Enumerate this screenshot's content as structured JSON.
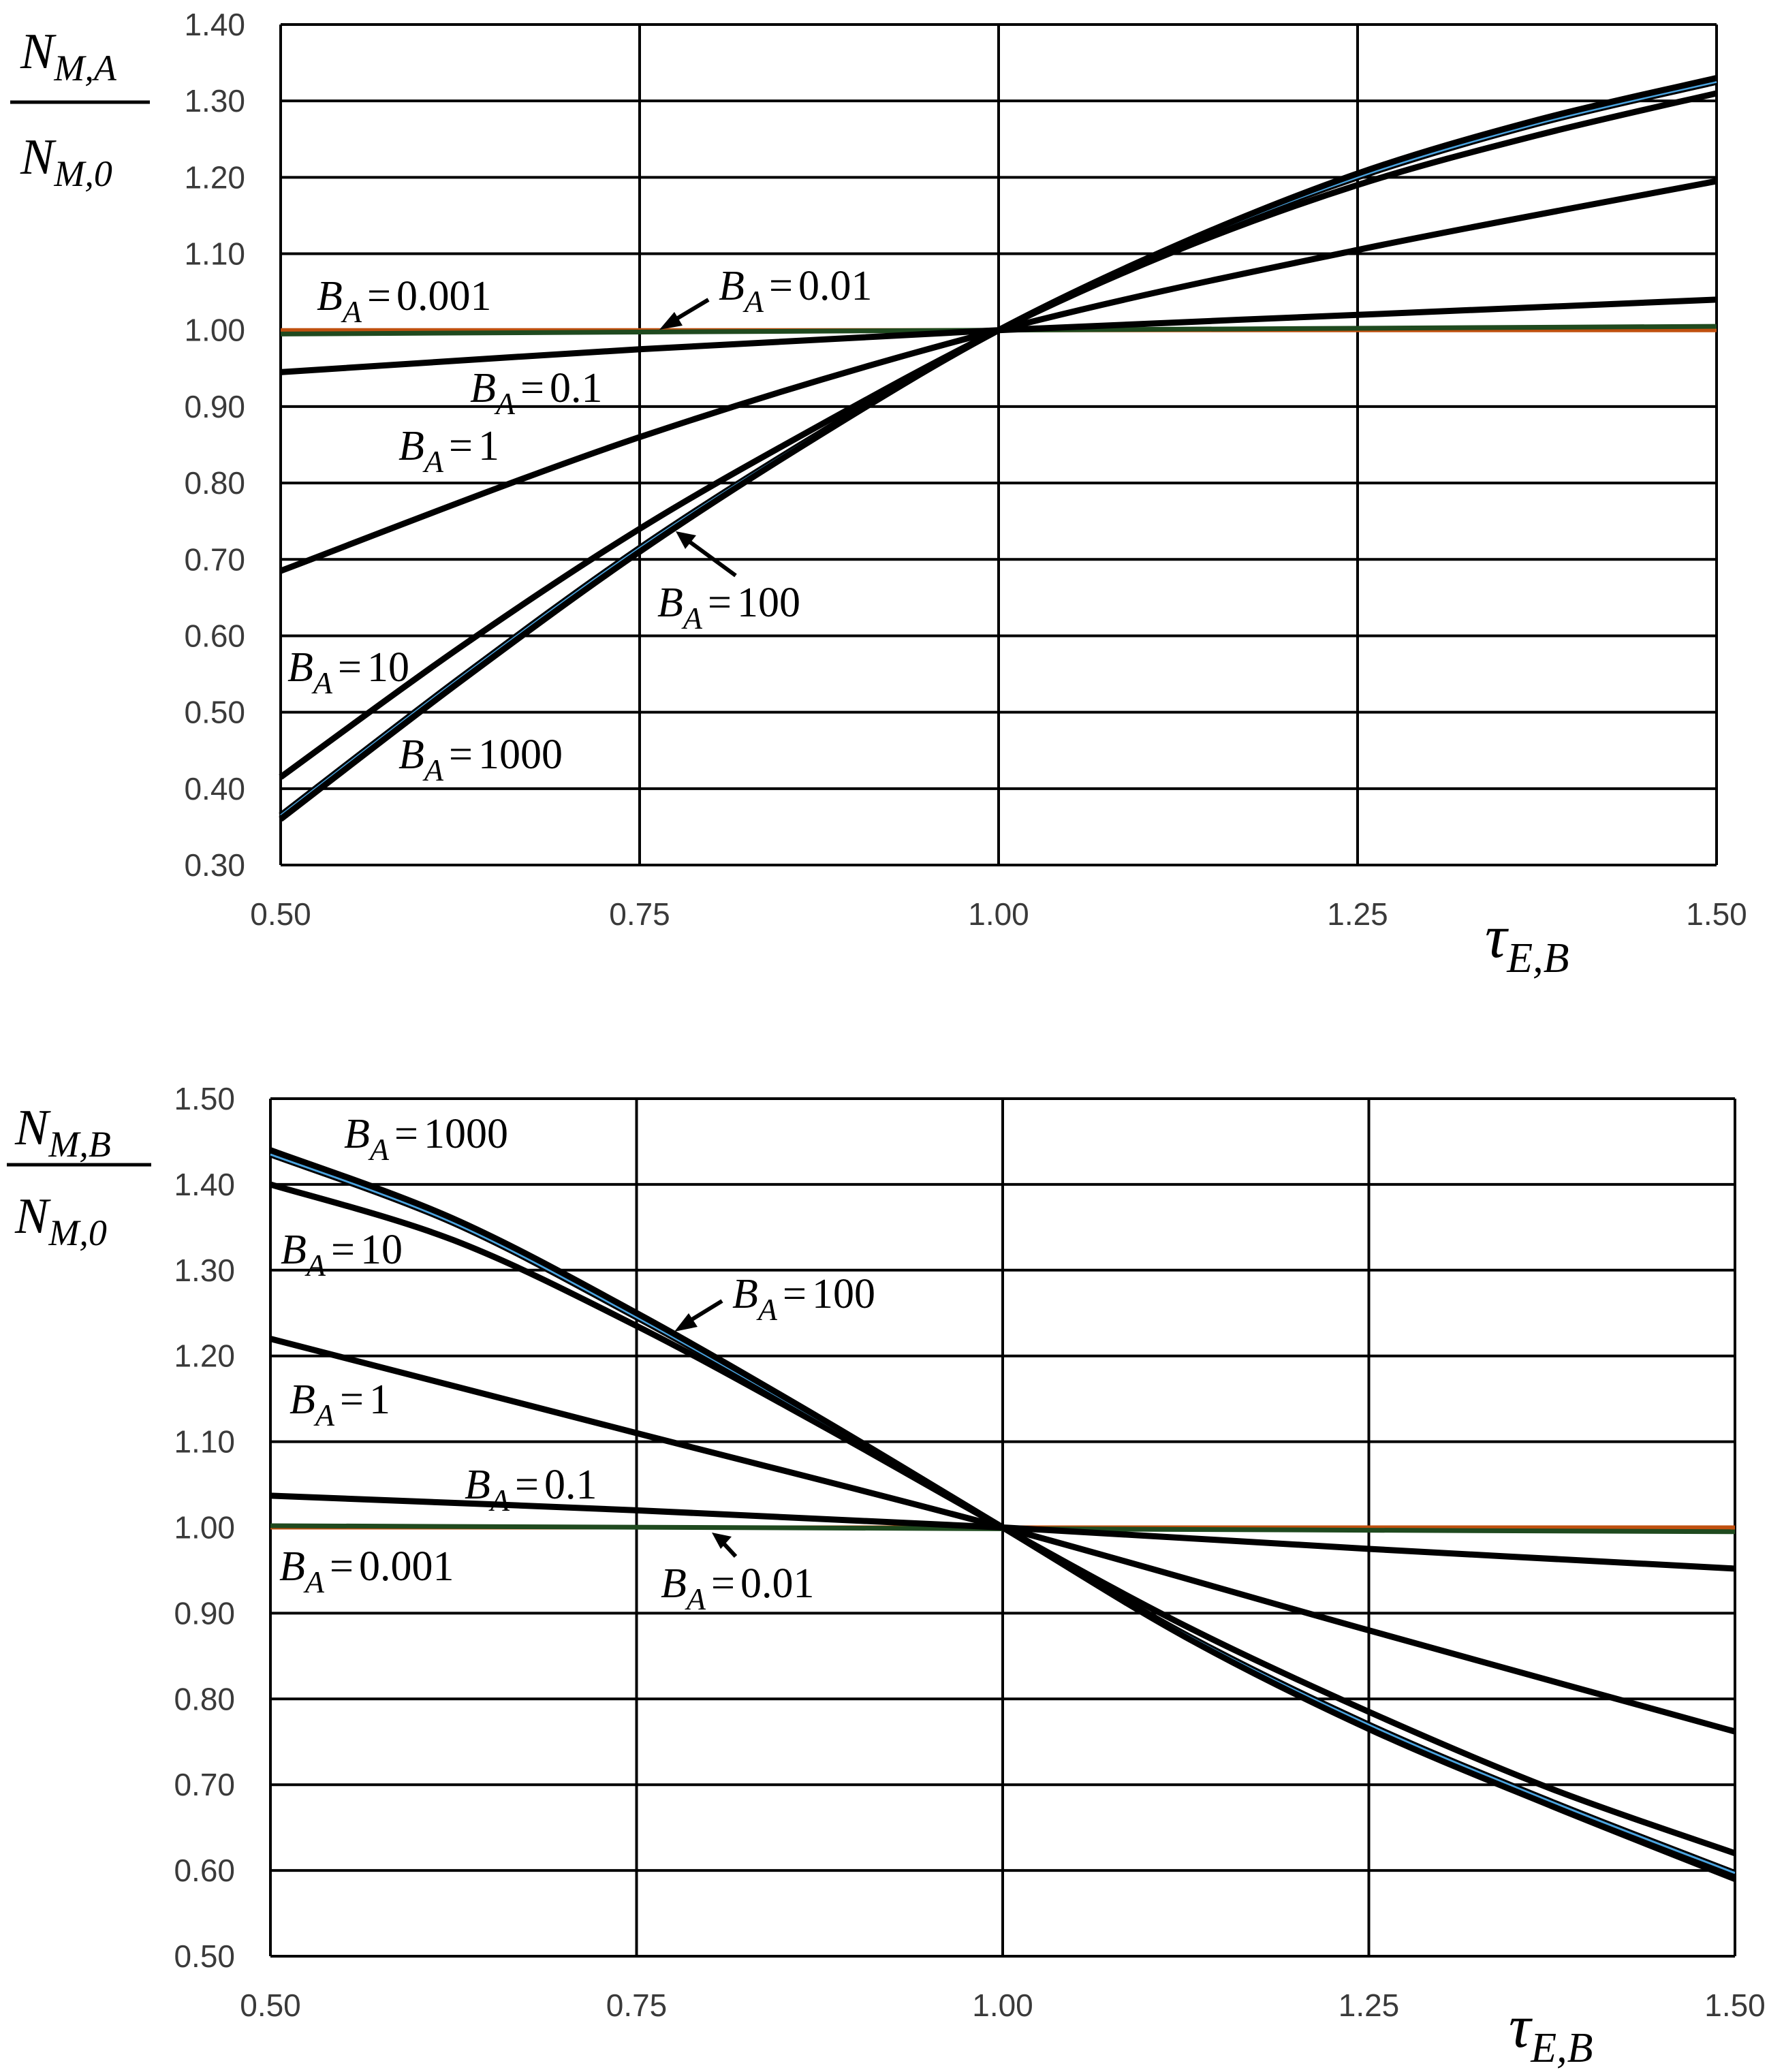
{
  "chart_data": [
    {
      "id": "top",
      "type": "line",
      "ylabel_num": {
        "main": "N",
        "sub": "M,A"
      },
      "ylabel_den": {
        "main": "N",
        "sub": "M,0"
      },
      "xlabel": {
        "main": "τ",
        "sub": "E,B"
      },
      "xlim": [
        0.5,
        1.5
      ],
      "ylim": [
        0.3,
        1.4
      ],
      "xticks": [
        "0.50",
        "0.75",
        "1.00",
        "1.25",
        "1.50"
      ],
      "yticks": [
        "0.30",
        "0.40",
        "0.50",
        "0.60",
        "0.70",
        "0.80",
        "0.90",
        "1.00",
        "1.10",
        "1.20",
        "1.30",
        "1.40"
      ],
      "series": [
        {
          "name": "B_A = 0.001",
          "x": [
            0.5,
            1.5
          ],
          "y": [
            1.0,
            1.0
          ],
          "color": "#c0500f"
        },
        {
          "name": "B_A = 0.01",
          "x": [
            0.5,
            1.5
          ],
          "y": [
            0.995,
            1.005
          ],
          "color": "#1f4a1f"
        },
        {
          "name": "B_A = 0.1",
          "x": [
            0.5,
            0.75,
            1.0,
            1.25,
            1.5
          ],
          "y": [
            0.945,
            0.975,
            1.0,
            1.02,
            1.04
          ],
          "color": "#000000"
        },
        {
          "name": "B_A = 1",
          "x": [
            0.5,
            0.75,
            1.0,
            1.25,
            1.5
          ],
          "y": [
            0.685,
            0.86,
            1.0,
            1.105,
            1.195
          ],
          "color": "#000000"
        },
        {
          "name": "B_A = 10",
          "x": [
            0.5,
            0.625,
            0.75,
            0.875,
            1.0,
            1.125,
            1.25,
            1.375,
            1.5
          ],
          "y": [
            0.415,
            0.585,
            0.74,
            0.875,
            1.0,
            1.105,
            1.19,
            1.255,
            1.31
          ],
          "color": "#000000"
        },
        {
          "name": "B_A = 100",
          "x": [
            0.5,
            0.625,
            0.75,
            0.875,
            1.0,
            1.125,
            1.25,
            1.375,
            1.5
          ],
          "y": [
            0.365,
            0.545,
            0.715,
            0.865,
            1.0,
            1.11,
            1.2,
            1.27,
            1.325
          ],
          "color": "#4aa3df"
        },
        {
          "name": "B_A = 1000",
          "x": [
            0.5,
            0.625,
            0.75,
            0.875,
            1.0,
            1.125,
            1.25,
            1.375,
            1.5
          ],
          "y": [
            0.36,
            0.54,
            0.71,
            0.862,
            1.0,
            1.112,
            1.205,
            1.275,
            1.33
          ],
          "color": "#000000"
        }
      ],
      "labels": [
        {
          "B": "B",
          "sub": "A",
          "eq": "=",
          "val": "0.001"
        },
        {
          "B": "B",
          "sub": "A",
          "eq": "=",
          "val": "0.01"
        },
        {
          "B": "B",
          "sub": "A",
          "eq": "=",
          "val": "0.1"
        },
        {
          "B": "B",
          "sub": "A",
          "eq": "=",
          "val": "1"
        },
        {
          "B": "B",
          "sub": "A",
          "eq": "=",
          "val": "100"
        },
        {
          "B": "B",
          "sub": "A",
          "eq": "=",
          "val": "10"
        },
        {
          "B": "B",
          "sub": "A",
          "eq": "=",
          "val": "1000"
        }
      ]
    },
    {
      "id": "bottom",
      "type": "line",
      "ylabel_num": {
        "main": "N",
        "sub": "M,",
        "sub2": "B"
      },
      "ylabel_den": {
        "main": "N",
        "sub": "M,0"
      },
      "xlabel": {
        "main": "τ",
        "sub": "E,B"
      },
      "xlim": [
        0.5,
        1.5
      ],
      "ylim": [
        0.5,
        1.5
      ],
      "xticks": [
        "0.50",
        "0.75",
        "1.00",
        "1.25",
        "1.50"
      ],
      "yticks": [
        "0.50",
        "0.60",
        "0.70",
        "0.80",
        "0.90",
        "1.00",
        "1.10",
        "1.20",
        "1.30",
        "1.40",
        "1.50"
      ],
      "series": [
        {
          "name": "B_A = 0.001",
          "x": [
            0.5,
            1.5
          ],
          "y": [
            1.0,
            1.0
          ],
          "color": "#c0500f"
        },
        {
          "name": "B_A = 0.01",
          "x": [
            0.5,
            1.5
          ],
          "y": [
            1.002,
            0.995
          ],
          "color": "#1f4a1f"
        },
        {
          "name": "B_A = 0.1",
          "x": [
            0.5,
            0.75,
            1.0,
            1.25,
            1.5
          ],
          "y": [
            1.037,
            1.02,
            1.0,
            0.975,
            0.952
          ],
          "color": "#000000"
        },
        {
          "name": "B_A = 1",
          "x": [
            0.5,
            0.75,
            1.0,
            1.25,
            1.5
          ],
          "y": [
            1.22,
            1.11,
            1.0,
            0.88,
            0.762
          ],
          "color": "#000000"
        },
        {
          "name": "B_A = 10",
          "x": [
            0.5,
            0.625,
            0.75,
            0.875,
            1.0,
            1.125,
            1.25,
            1.375,
            1.5
          ],
          "y": [
            1.4,
            1.335,
            1.235,
            1.12,
            1.0,
            0.885,
            0.785,
            0.695,
            0.62
          ],
          "color": "#000000"
        },
        {
          "name": "B_A = 100",
          "x": [
            0.5,
            0.625,
            0.75,
            0.875,
            1.0,
            1.125,
            1.25,
            1.375,
            1.5
          ],
          "y": [
            1.435,
            1.355,
            1.245,
            1.125,
            1.0,
            0.875,
            0.77,
            0.68,
            0.597
          ],
          "color": "#4aa3df"
        },
        {
          "name": "B_A = 1000",
          "x": [
            0.5,
            0.625,
            0.75,
            0.875,
            1.0,
            1.125,
            1.25,
            1.375,
            1.5
          ],
          "y": [
            1.44,
            1.36,
            1.25,
            1.128,
            1.0,
            0.872,
            0.765,
            0.675,
            0.59
          ],
          "color": "#000000"
        }
      ],
      "labels": [
        {
          "B": "B",
          "sub": "A",
          "eq": "=",
          "val": "1000"
        },
        {
          "B": "B",
          "sub": "A",
          "eq": "=",
          "val": "10"
        },
        {
          "B": "B",
          "sub": "A",
          "eq": "=",
          "val": "100"
        },
        {
          "B": "B",
          "sub": "A",
          "eq": "=",
          "val": "1"
        },
        {
          "B": "B",
          "sub": "A",
          "eq": "=",
          "val": "0.1"
        },
        {
          "B": "B",
          "sub": "A",
          "eq": "=",
          "val": "0.001"
        },
        {
          "B": "B",
          "sub": "A",
          "eq": "=",
          "val": "0.01"
        }
      ]
    }
  ]
}
